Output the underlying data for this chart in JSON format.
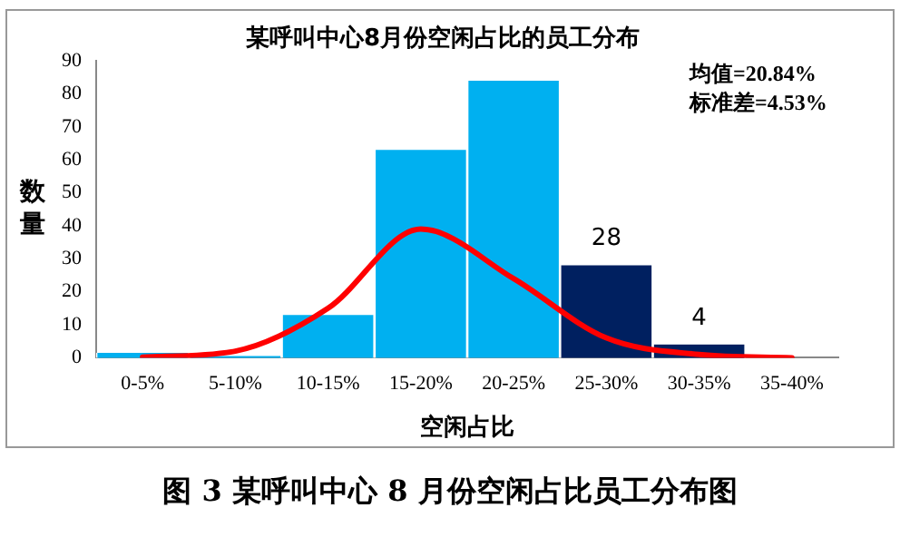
{
  "chart_data": {
    "type": "bar",
    "title": "某呼叫中心8月份空闲占比的员工分布",
    "xlabel": "空闲占比",
    "ylabel": "数量",
    "categories": [
      "0-5%",
      "5-10%",
      "10-15%",
      "15-20%",
      "20-25%",
      "25-30%",
      "30-35%",
      "35-40%"
    ],
    "series": [
      {
        "colors": [
          "#00b0f0",
          "#00b0f0",
          "#00b0f0",
          "#00b0f0",
          "#00b0f0",
          "#002060",
          "#002060",
          "#002060"
        ],
        "values": [
          1.5,
          0.5,
          13,
          63,
          84,
          28,
          4,
          0
        ],
        "value_labels": [
          null,
          null,
          null,
          null,
          null,
          "28",
          "4",
          null
        ]
      },
      {
        "type": "line",
        "color": "#ff0000",
        "values": [
          0.2,
          2,
          15,
          39,
          24,
          6,
          1,
          0
        ]
      }
    ],
    "ylim": [
      0,
      90
    ],
    "yticks": [
      0,
      10,
      20,
      30,
      40,
      50,
      60,
      70,
      80,
      90
    ],
    "grid": false,
    "legend": false,
    "marker": "none",
    "line_style": "solid",
    "annotations": [
      "均值=20.84%",
      "标准差=4.53%",
      "图 3 某呼叫中心 8 月份空闲占比员工分布图"
    ]
  }
}
